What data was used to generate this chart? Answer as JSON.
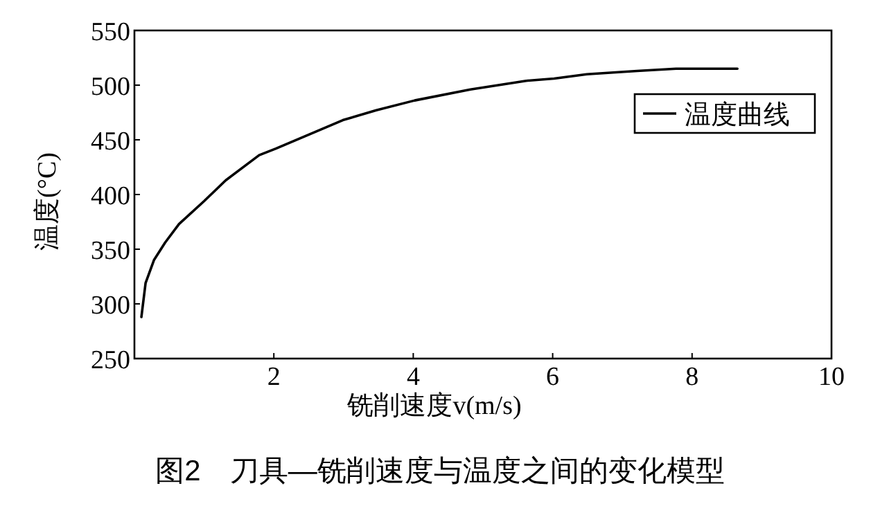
{
  "chart_data": {
    "type": "line",
    "xlabel": "铣削速度v(m/s)",
    "ylabel": "温度(°C)",
    "xlim": [
      0,
      10
    ],
    "ylim": [
      250,
      550
    ],
    "xticks": [
      2,
      4,
      6,
      8,
      10
    ],
    "yticks": [
      250,
      300,
      350,
      400,
      450,
      500,
      550
    ],
    "legend": "top right",
    "grid": false,
    "marker": "none",
    "line_style": "solid",
    "series": [
      {
        "name": "温度曲线",
        "color": "#000000",
        "x": [
          0.1,
          0.16,
          0.28,
          0.44,
          0.64,
          1.0,
          1.31,
          1.79,
          2.03,
          2.51,
          2.99,
          3.47,
          4.02,
          4.82,
          5.22,
          5.62,
          6.02,
          6.49,
          7.21,
          7.77,
          8.65
        ],
        "values": [
          288,
          319,
          340,
          356,
          373,
          394,
          413,
          436,
          442,
          455,
          468,
          477,
          486,
          496,
          500,
          504,
          506,
          510,
          513,
          515,
          515
        ]
      }
    ],
    "annotations": [
      "图2　刀具—铣削速度与温度之间的变化模型"
    ]
  }
}
